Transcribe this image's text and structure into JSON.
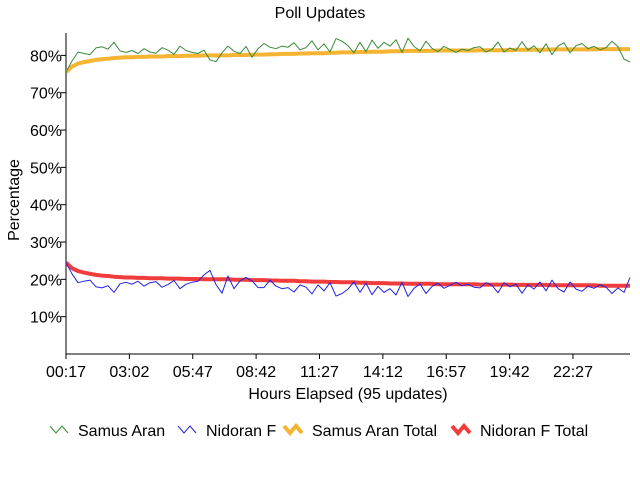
{
  "chart_data": {
    "type": "line",
    "title": "Poll Updates",
    "xlabel": "Hours Elapsed (95 updates)",
    "ylabel": "Percentage",
    "x_tick_labels": [
      "00:17",
      "03:02",
      "05:47",
      "08:42",
      "11:27",
      "14:12",
      "16:57",
      "19:42",
      "22:27"
    ],
    "y_tick_labels": [
      "10%",
      "20%",
      "30%",
      "40%",
      "50%",
      "60%",
      "70%",
      "80%"
    ],
    "y_ticks": [
      10,
      20,
      30,
      40,
      50,
      60,
      70,
      80
    ],
    "ylim": [
      0,
      86
    ],
    "update_count": 95,
    "grid": false,
    "legend": "bottom",
    "series": [
      {
        "name": "Samus Aran",
        "color": "#3a8a3a",
        "style": "thin",
        "values": [
          75.5,
          78.5,
          80.9,
          80.5,
          80.2,
          82.0,
          82.3,
          81.7,
          83.5,
          81.2,
          80.8,
          81.3,
          80.5,
          81.8,
          80.9,
          80.6,
          82.1,
          81.4,
          80.3,
          82.5,
          81.3,
          80.8,
          80.5,
          81.4,
          78.8,
          78.3,
          80.7,
          82.5,
          81.1,
          80.5,
          82.4,
          79.5,
          81.8,
          83.2,
          82.2,
          81.8,
          82.5,
          82.2,
          83.4,
          81.5,
          82.1,
          83.9,
          81.5,
          83.1,
          80.9,
          84.5,
          83.8,
          82.6,
          80.7,
          83.5,
          81.0,
          84.1,
          81.9,
          83.5,
          82.5,
          84.2,
          80.8,
          84.6,
          82.4,
          81.2,
          83.8,
          81.9,
          81.0,
          82.4,
          81.6,
          80.8,
          81.7,
          81.3,
          82.1,
          82.3,
          80.9,
          81.6,
          83.6,
          80.9,
          82.0,
          81.3,
          83.7,
          81.4,
          82.6,
          80.7,
          83.1,
          80.2,
          82.5,
          83.4,
          80.7,
          82.6,
          83.2,
          81.8,
          82.4,
          81.5,
          82.1,
          83.8,
          82.3,
          79.0,
          78.2
        ]
      },
      {
        "name": "Nidoran F",
        "color": "#2222dd",
        "style": "thin",
        "values": [
          24.5,
          21.5,
          19.1,
          19.5,
          19.8,
          18.0,
          17.7,
          18.3,
          16.5,
          18.8,
          19.2,
          18.7,
          19.5,
          18.2,
          19.1,
          19.4,
          17.9,
          18.6,
          19.7,
          17.5,
          18.7,
          19.2,
          19.5,
          21.2,
          22.4,
          18.6,
          16.3,
          20.9,
          17.5,
          19.6,
          20.5,
          19.6,
          17.8,
          17.8,
          19.8,
          18.2,
          17.5,
          17.8,
          16.6,
          18.5,
          17.9,
          16.1,
          18.5,
          16.9,
          19.1,
          15.5,
          16.2,
          17.4,
          19.3,
          16.5,
          19.0,
          15.9,
          18.1,
          16.5,
          17.5,
          15.8,
          19.2,
          15.4,
          17.6,
          18.8,
          16.2,
          18.1,
          19.0,
          17.6,
          18.4,
          19.2,
          18.3,
          18.7,
          17.9,
          17.7,
          19.1,
          18.4,
          16.4,
          19.1,
          18.0,
          18.7,
          16.3,
          18.6,
          17.4,
          19.3,
          16.9,
          19.8,
          17.5,
          16.6,
          19.3,
          17.4,
          16.8,
          18.2,
          17.6,
          18.5,
          17.9,
          16.2,
          17.7,
          16.5,
          20.5
        ]
      },
      {
        "name": "Samus Aran Total",
        "color": "#f5b432",
        "style": "thick",
        "values": [
          75.5,
          77.0,
          77.8,
          78.2,
          78.5,
          78.8,
          79.0,
          79.1,
          79.3,
          79.4,
          79.5,
          79.5,
          79.6,
          79.6,
          79.7,
          79.7,
          79.7,
          79.8,
          79.8,
          79.8,
          79.9,
          79.9,
          79.9,
          80.0,
          80.0,
          80.0,
          80.0,
          80.0,
          80.1,
          80.1,
          80.1,
          80.2,
          80.2,
          80.2,
          80.3,
          80.3,
          80.4,
          80.4,
          80.4,
          80.5,
          80.5,
          80.6,
          80.6,
          80.6,
          80.7,
          80.7,
          80.8,
          80.8,
          80.8,
          80.9,
          80.9,
          81.0,
          81.0,
          81.0,
          81.1,
          81.1,
          81.1,
          81.2,
          81.2,
          81.2,
          81.2,
          81.2,
          81.3,
          81.3,
          81.3,
          81.3,
          81.3,
          81.3,
          81.3,
          81.4,
          81.4,
          81.4,
          81.4,
          81.4,
          81.4,
          81.5,
          81.5,
          81.5,
          81.5,
          81.5,
          81.5,
          81.6,
          81.6,
          81.6,
          81.6,
          81.6,
          81.6,
          81.6,
          81.6,
          81.7,
          81.7,
          81.7,
          81.7,
          81.7,
          81.7
        ]
      },
      {
        "name": "Nidoran F Total",
        "color": "#f03c3c",
        "style": "thick",
        "values": [
          24.5,
          23.0,
          22.2,
          21.8,
          21.5,
          21.2,
          21.0,
          20.9,
          20.7,
          20.6,
          20.5,
          20.5,
          20.4,
          20.4,
          20.3,
          20.3,
          20.3,
          20.2,
          20.2,
          20.2,
          20.1,
          20.1,
          20.1,
          20.0,
          20.0,
          20.0,
          20.0,
          20.0,
          19.9,
          19.9,
          19.9,
          19.8,
          19.8,
          19.8,
          19.7,
          19.7,
          19.6,
          19.6,
          19.6,
          19.5,
          19.5,
          19.4,
          19.4,
          19.4,
          19.3,
          19.3,
          19.2,
          19.2,
          19.2,
          19.1,
          19.1,
          19.0,
          19.0,
          19.0,
          18.9,
          18.9,
          18.9,
          18.8,
          18.8,
          18.8,
          18.8,
          18.8,
          18.7,
          18.7,
          18.7,
          18.7,
          18.7,
          18.7,
          18.7,
          18.6,
          18.6,
          18.6,
          18.6,
          18.6,
          18.6,
          18.5,
          18.5,
          18.5,
          18.5,
          18.5,
          18.5,
          18.4,
          18.4,
          18.4,
          18.4,
          18.4,
          18.4,
          18.4,
          18.4,
          18.3,
          18.3,
          18.3,
          18.3,
          18.3,
          18.3
        ]
      }
    ]
  }
}
